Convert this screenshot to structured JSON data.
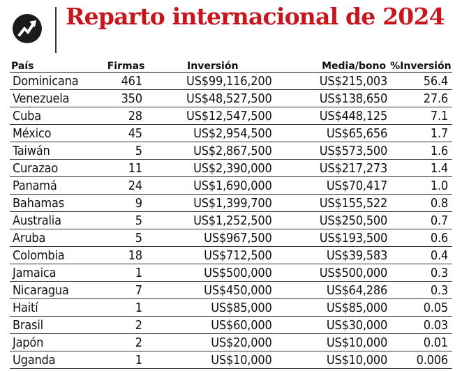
{
  "header": {
    "title": "Reparto internacional de 2024",
    "logo_icon": "trending-arrow-icon",
    "title_color": "#c8161e"
  },
  "table": {
    "columns": [
      "País",
      "Firmas",
      "Inversión",
      "Media/bono",
      "%Inversión"
    ],
    "rows": [
      [
        "Dominicana",
        "461",
        "US$99,116,200",
        "US$215,003",
        "56.4"
      ],
      [
        "Venezuela",
        "350",
        "US$48,527,500",
        "US$138,650",
        "27.6"
      ],
      [
        "Cuba",
        "28",
        "US$12,547,500",
        "US$448,125",
        "7.1"
      ],
      [
        "México",
        "45",
        "US$2,954,500",
        "US$65,656",
        "1.7"
      ],
      [
        "Taiwán",
        "5",
        "US$2,867,500",
        "US$573,500",
        "1.6"
      ],
      [
        "Curazao",
        "11",
        "US$2,390,000",
        "US$217,273",
        "1.4"
      ],
      [
        "Panamá",
        "24",
        "US$1,690,000",
        "US$70,417",
        "1.0"
      ],
      [
        "Bahamas",
        "9",
        "US$1,399,700",
        "US$155,522",
        "0.8"
      ],
      [
        "Australia",
        "5",
        "US$1,252,500",
        "US$250,500",
        "0.7"
      ],
      [
        "Aruba",
        "5",
        "US$967,500",
        "US$193,500",
        "0.6"
      ],
      [
        "Colombia",
        "18",
        "US$712,500",
        "US$39,583",
        "0.4"
      ],
      [
        "Jamaica",
        "1",
        "US$500,000",
        "US$500,000",
        "0.3"
      ],
      [
        "Nicaragua",
        "7",
        "US$450,000",
        "US$64,286",
        "0.3"
      ],
      [
        "Haití",
        "1",
        "US$85,000",
        "US$85,000",
        "0.05"
      ],
      [
        "Brasil",
        "2",
        "US$60,000",
        "US$30,000",
        "0.03"
      ],
      [
        "Japón",
        "2",
        "US$20,000",
        "US$10,000",
        "0.01"
      ],
      [
        "Uganda",
        "1",
        "US$10,000",
        "US$10,000",
        "0.006"
      ]
    ]
  }
}
